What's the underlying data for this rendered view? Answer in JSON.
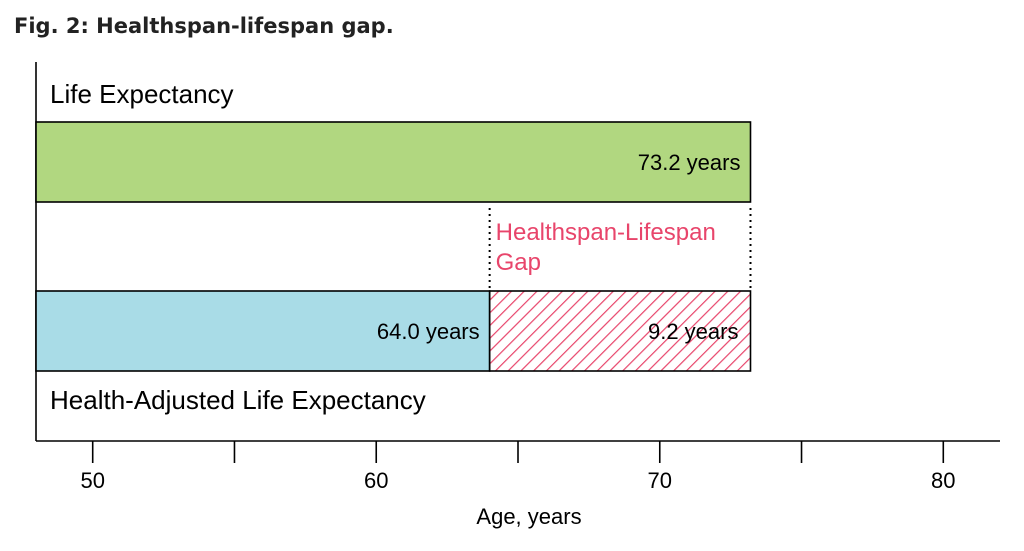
{
  "figure_title": "Fig. 2: Healthspan-lifespan gap.",
  "chart_data": {
    "type": "bar",
    "orientation": "horizontal",
    "xlabel": "Age, years",
    "xlim": [
      48,
      82
    ],
    "xticks": [
      50,
      60,
      70,
      80
    ],
    "grid": false,
    "bars": {
      "life_expectancy": {
        "label": "Life Expectancy",
        "value": 73.2,
        "value_label": "73.2 years",
        "color": "#b1d780"
      },
      "health_adjusted": {
        "label": "Health-Adjusted Life Expectancy",
        "value": 64.0,
        "value_label": "64.0 years",
        "color": "#a9dce7"
      },
      "gap": {
        "label": "Healthspan-Lifespan\nGap",
        "start": 64.0,
        "end": 73.2,
        "value": 9.2,
        "value_label": "9.2 years",
        "color": "#e8456b"
      }
    }
  }
}
